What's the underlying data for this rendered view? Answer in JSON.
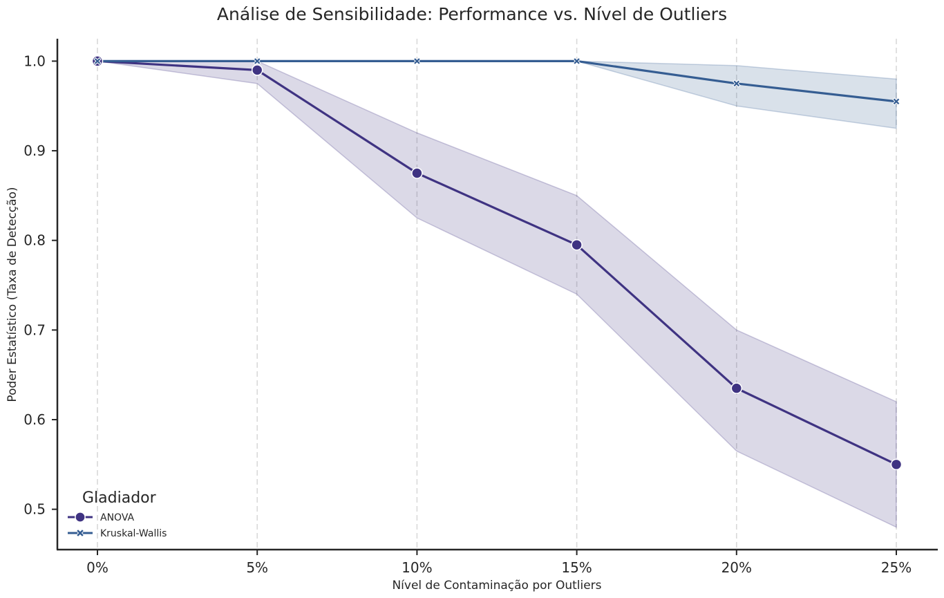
{
  "chart_data": {
    "type": "line",
    "title": "Análise de Sensibilidade: Performance vs. Nível de Outliers",
    "xlabel": "Nível de Contaminação por Outliers",
    "ylabel": "Poder Estatístico (Taxa de Detecção)",
    "categories": [
      "0%",
      "5%",
      "10%",
      "15%",
      "20%",
      "25%"
    ],
    "ylim": [
      0.455,
      1.025
    ],
    "yticks": [
      0.5,
      0.6,
      0.7,
      0.8,
      0.9,
      1.0
    ],
    "ytick_labels": [
      "0.5",
      "0.6",
      "0.7",
      "0.8",
      "0.9",
      "1.0"
    ],
    "grid": "vertical dashed",
    "legend_position": "lower-left",
    "legend_title": "Gladiador",
    "series": [
      {
        "name": "ANOVA",
        "marker": "circle",
        "color": "#3f3382",
        "values": [
          1.0,
          0.99,
          0.875,
          0.795,
          0.635,
          0.55
        ],
        "ci_lower": [
          1.0,
          0.975,
          0.825,
          0.74,
          0.565,
          0.48
        ],
        "ci_upper": [
          1.0,
          1.0,
          0.92,
          0.85,
          0.7,
          0.62
        ]
      },
      {
        "name": "Kruskal-Wallis",
        "marker": "x",
        "color": "#355d92",
        "values": [
          1.0,
          1.0,
          1.0,
          1.0,
          0.975,
          0.955
        ],
        "ci_lower": [
          1.0,
          1.0,
          1.0,
          1.0,
          0.95,
          0.925
        ],
        "ci_upper": [
          1.0,
          1.0,
          1.0,
          1.0,
          0.995,
          0.98
        ]
      }
    ]
  }
}
